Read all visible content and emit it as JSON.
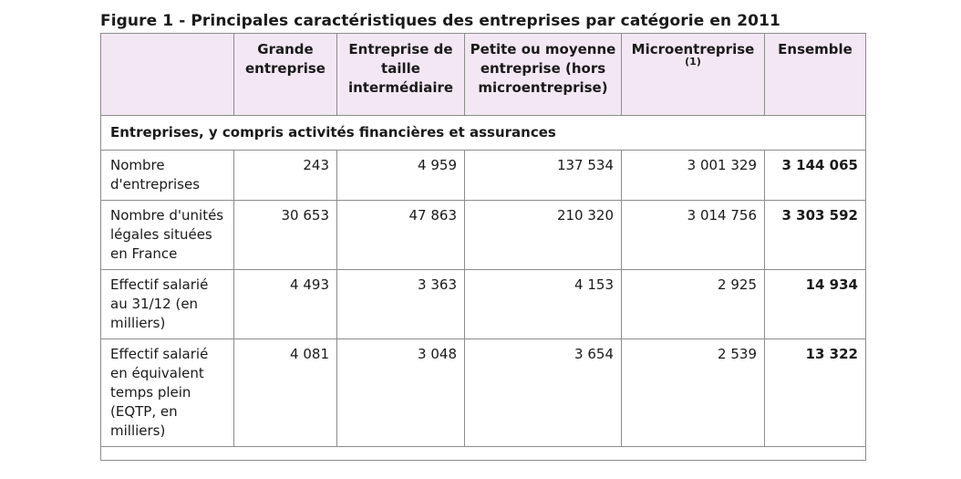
{
  "title": "Figure 1 - Principales caractéristiques des entreprises par catégorie en 2011",
  "headers": {
    "label": "",
    "ge": "Grande entreprise",
    "eti": "Entreprise de taille intermédiaire",
    "pme": "Petite ou moyenne entreprise (hors microentreprise)",
    "micro": "Microentreprise",
    "micro_note": "(1)",
    "total": "Ensemble"
  },
  "section_label": "Entreprises, y compris activités financières et assurances",
  "rows": [
    {
      "label": "Nombre d'entreprises",
      "ge": "243",
      "eti": "4 959",
      "pme": "137 534",
      "micro": "3 001 329",
      "total": "3 144 065"
    },
    {
      "label": "Nombre d'unités légales situées en France",
      "ge": "30 653",
      "eti": "47 863",
      "pme": "210 320",
      "micro": "3 014 756",
      "total": "3 303 592"
    },
    {
      "label": "Effectif salarié au 31/12 (en milliers)",
      "ge": "4 493",
      "eti": "3 363",
      "pme": "4 153",
      "micro": "2 925",
      "total": "14 934"
    },
    {
      "label": "Effectif salarié en équivalent temps plein (EQTP, en milliers)",
      "ge": "4 081",
      "eti": "3 048",
      "pme": "3 654",
      "micro": "2 539",
      "total": "13 322"
    }
  ],
  "colors": {
    "header_bg": "#f3e7f3",
    "border": "#8c8c8c"
  }
}
